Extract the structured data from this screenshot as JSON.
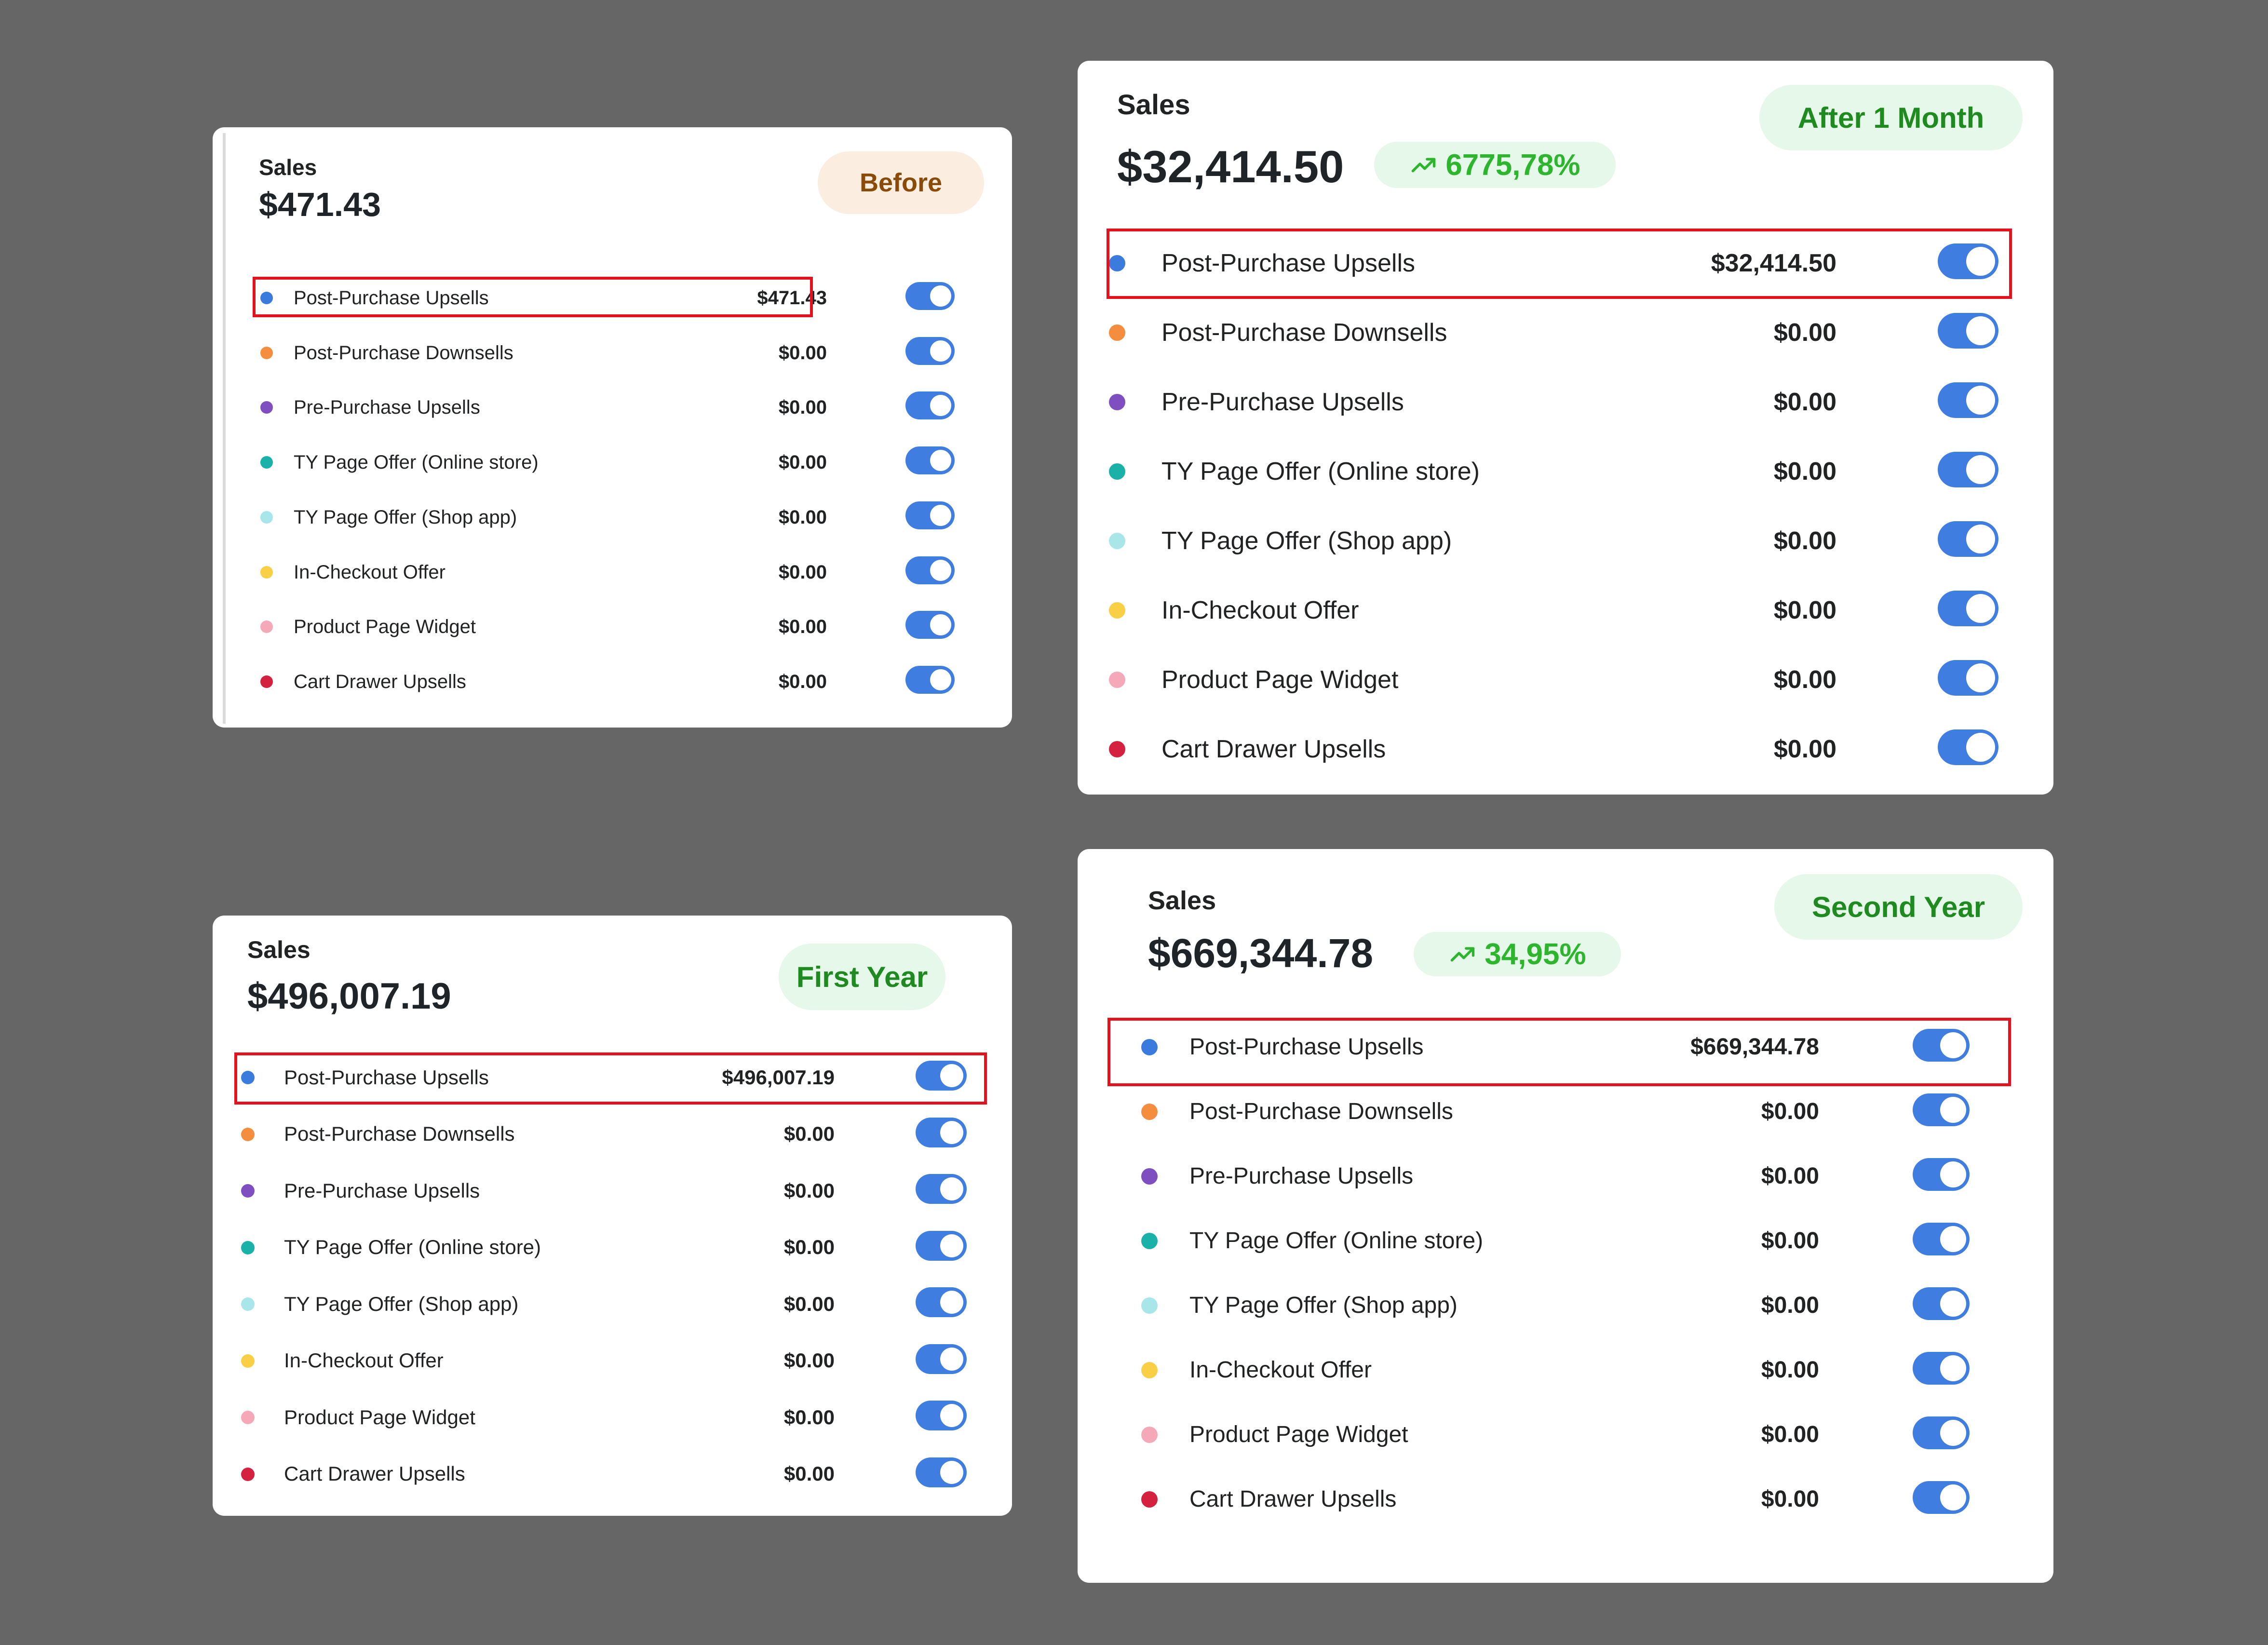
{
  "colors": {
    "background": "#666666",
    "card": "#ffffff",
    "toggle": "#3f7ee0",
    "highlight": "#e3121f",
    "dots": [
      "#3c7bde",
      "#f58d3e",
      "#7f4fbf",
      "#1ab2a8",
      "#a8e6ea",
      "#f8cf45",
      "#f5a9b8",
      "#d42140"
    ]
  },
  "panels": [
    {
      "id": "before",
      "label": "Sales",
      "total": "$471.43",
      "badge": "Before",
      "growth": "",
      "rows": [
        {
          "label": "Post-Purchase Upsells",
          "value": "$471.43",
          "enabled": true,
          "highlighted": true
        },
        {
          "label": "Post-Purchase Downsells",
          "value": "$0.00",
          "enabled": true,
          "highlighted": false
        },
        {
          "label": "Pre-Purchase Upsells",
          "value": "$0.00",
          "enabled": true,
          "highlighted": false
        },
        {
          "label": "TY Page Offer (Online store)",
          "value": "$0.00",
          "enabled": true,
          "highlighted": false
        },
        {
          "label": "TY Page Offer (Shop app)",
          "value": "$0.00",
          "enabled": true,
          "highlighted": false
        },
        {
          "label": "In-Checkout Offer",
          "value": "$0.00",
          "enabled": true,
          "highlighted": false
        },
        {
          "label": "Product Page Widget",
          "value": "$0.00",
          "enabled": true,
          "highlighted": false
        },
        {
          "label": "Cart Drawer Upsells",
          "value": "$0.00",
          "enabled": true,
          "highlighted": false
        }
      ]
    },
    {
      "id": "after-1-month",
      "label": "Sales",
      "total": "$32,414.50",
      "badge": "After 1 Month",
      "growth": "6775,78%",
      "rows": [
        {
          "label": "Post-Purchase Upsells",
          "value": "$32,414.50",
          "enabled": true,
          "highlighted": true
        },
        {
          "label": "Post-Purchase Downsells",
          "value": "$0.00",
          "enabled": true,
          "highlighted": false
        },
        {
          "label": "Pre-Purchase Upsells",
          "value": "$0.00",
          "enabled": true,
          "highlighted": false
        },
        {
          "label": "TY Page Offer (Online store)",
          "value": "$0.00",
          "enabled": true,
          "highlighted": false
        },
        {
          "label": "TY Page Offer (Shop app)",
          "value": "$0.00",
          "enabled": true,
          "highlighted": false
        },
        {
          "label": "In-Checkout Offer",
          "value": "$0.00",
          "enabled": true,
          "highlighted": false
        },
        {
          "label": "Product Page Widget",
          "value": "$0.00",
          "enabled": true,
          "highlighted": false
        },
        {
          "label": "Cart Drawer Upsells",
          "value": "$0.00",
          "enabled": true,
          "highlighted": false
        }
      ]
    },
    {
      "id": "first-year",
      "label": "Sales",
      "total": "$496,007.19",
      "badge": "First Year",
      "growth": "",
      "rows": [
        {
          "label": "Post-Purchase Upsells",
          "value": "$496,007.19",
          "enabled": true,
          "highlighted": true
        },
        {
          "label": "Post-Purchase Downsells",
          "value": "$0.00",
          "enabled": true,
          "highlighted": false
        },
        {
          "label": "Pre-Purchase Upsells",
          "value": "$0.00",
          "enabled": true,
          "highlighted": false
        },
        {
          "label": "TY Page Offer (Online store)",
          "value": "$0.00",
          "enabled": true,
          "highlighted": false
        },
        {
          "label": "TY Page Offer (Shop app)",
          "value": "$0.00",
          "enabled": true,
          "highlighted": false
        },
        {
          "label": "In-Checkout Offer",
          "value": "$0.00",
          "enabled": true,
          "highlighted": false
        },
        {
          "label": "Product Page Widget",
          "value": "$0.00",
          "enabled": true,
          "highlighted": false
        },
        {
          "label": "Cart Drawer Upsells",
          "value": "$0.00",
          "enabled": true,
          "highlighted": false
        }
      ]
    },
    {
      "id": "second-year",
      "label": "Sales",
      "total": "$669,344.78",
      "badge": "Second Year",
      "growth": "34,95%",
      "rows": [
        {
          "label": "Post-Purchase Upsells",
          "value": "$669,344.78",
          "enabled": true,
          "highlighted": true
        },
        {
          "label": "Post-Purchase Downsells",
          "value": "$0.00",
          "enabled": true,
          "highlighted": false
        },
        {
          "label": "Pre-Purchase Upsells",
          "value": "$0.00",
          "enabled": true,
          "highlighted": false
        },
        {
          "label": "TY Page Offer (Online store)",
          "value": "$0.00",
          "enabled": true,
          "highlighted": false
        },
        {
          "label": "TY Page Offer (Shop app)",
          "value": "$0.00",
          "enabled": true,
          "highlighted": false
        },
        {
          "label": "In-Checkout Offer",
          "value": "$0.00",
          "enabled": true,
          "highlighted": false
        },
        {
          "label": "Product Page Widget",
          "value": "$0.00",
          "enabled": true,
          "highlighted": false
        },
        {
          "label": "Cart Drawer Upsells",
          "value": "$0.00",
          "enabled": true,
          "highlighted": false
        }
      ]
    }
  ]
}
